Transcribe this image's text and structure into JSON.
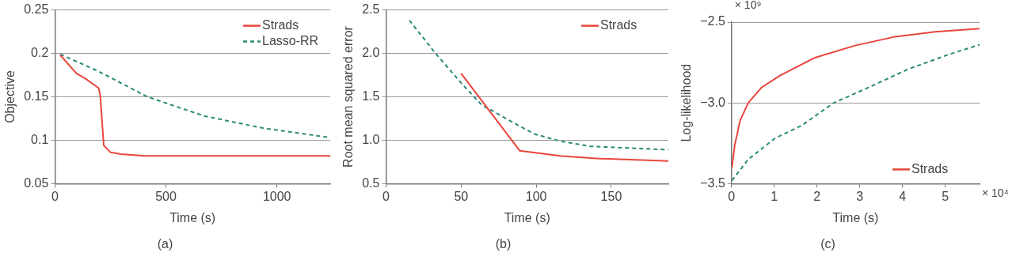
{
  "chart_data": [
    {
      "type": "line",
      "title": "(a)",
      "xlabel": "Time (s)",
      "ylabel": "Objective",
      "xlim": [
        0,
        1240
      ],
      "xticks": [
        0,
        500,
        1000
      ],
      "ylim": [
        0.05,
        0.25
      ],
      "yticks": [
        0.05,
        0.1,
        0.15,
        0.2,
        0.25
      ],
      "grid": "y",
      "legend": "top right",
      "marker": "none",
      "series": [
        {
          "name": "Strads",
          "color": "#e8463c",
          "line_style": "solid",
          "x": [
            24,
            97,
            137,
            197,
            204,
            220,
            251,
            297,
            404,
            1240
          ],
          "values": [
            0.198,
            0.177,
            0.171,
            0.16,
            0.152,
            0.094,
            0.086,
            0.084,
            0.082,
            0.082
          ]
        },
        {
          "name": "Lasso-RR",
          "color": "#2a8a7a",
          "line_style": "dashed",
          "x": [
            24,
            191,
            417,
            671,
            937,
            1240
          ],
          "values": [
            0.199,
            0.18,
            0.15,
            0.128,
            0.114,
            0.103
          ]
        }
      ]
    },
    {
      "type": "line",
      "title": "(b)",
      "xlabel": "Time (s)",
      "ylabel": "Root mean squared error",
      "xlim": [
        0,
        188
      ],
      "xticks": [
        0,
        50,
        100,
        150
      ],
      "ylim": [
        0.5,
        2.5
      ],
      "yticks": [
        {
          "value": 0.5,
          "label": "0.5"
        },
        {
          "value": 1,
          "label": "1.0"
        },
        {
          "value": 1.5,
          "label": "1.5"
        },
        {
          "value": 2,
          "label": "2.0"
        },
        {
          "value": 2.5,
          "label": "2.5"
        }
      ],
      "grid": "y",
      "legend": "top right",
      "marker": "none",
      "series": [
        {
          "name": "Strads",
          "color": "#e8463c",
          "line_style": "solid",
          "x": [
            50,
            89,
            116,
            140,
            188
          ],
          "values": [
            1.77,
            0.88,
            0.82,
            0.79,
            0.76
          ]
        },
        {
          "color": "#2a8a7a",
          "line_style": "dashed",
          "x": [
            15.6,
            33,
            50,
            63.5,
            85,
            99,
            116,
            136,
            188
          ],
          "values": [
            2.38,
            2.0,
            1.66,
            1.41,
            1.2,
            1.07,
            0.99,
            0.93,
            0.89
          ]
        }
      ]
    },
    {
      "type": "line",
      "title": "(c)",
      "xlabel": "Time (s)",
      "ylabel": "Log-likelihood",
      "annotations": [
        "× 10⁹",
        "× 10⁴"
      ],
      "xlim": [
        0,
        5.8
      ],
      "xticks": [
        0,
        1,
        2,
        3,
        4,
        5
      ],
      "ylim": [
        -3.5,
        -2.5
      ],
      "yticks": [
        {
          "value": -3.5,
          "label": "−3.5"
        },
        {
          "value": -3,
          "label": "−3.0"
        },
        {
          "value": -2.5,
          "label": "−2.5"
        }
      ],
      "grid": "y",
      "legend": "bottom right",
      "marker": "none",
      "series": [
        {
          "name": "Strads",
          "color": "#e8463c",
          "line_style": "solid",
          "x": [
            0.01,
            0.075,
            0.2,
            0.39,
            0.7,
            1.14,
            1.95,
            2.89,
            3.83,
            4.76,
            5.8
          ],
          "values": [
            -3.4,
            -3.26,
            -3.11,
            -3.0,
            -2.905,
            -2.83,
            -2.72,
            -2.645,
            -2.59,
            -2.56,
            -2.54
          ]
        },
        {
          "color": "#2a8a7a",
          "line_style": "dashed",
          "x": [
            0.01,
            0.39,
            1.01,
            1.64,
            2.39,
            3.2,
            4.14,
            5.08,
            5.8
          ],
          "values": [
            -3.48,
            -3.35,
            -3.22,
            -3.14,
            -3.0,
            -2.905,
            -2.79,
            -2.7,
            -2.64
          ]
        }
      ]
    }
  ]
}
